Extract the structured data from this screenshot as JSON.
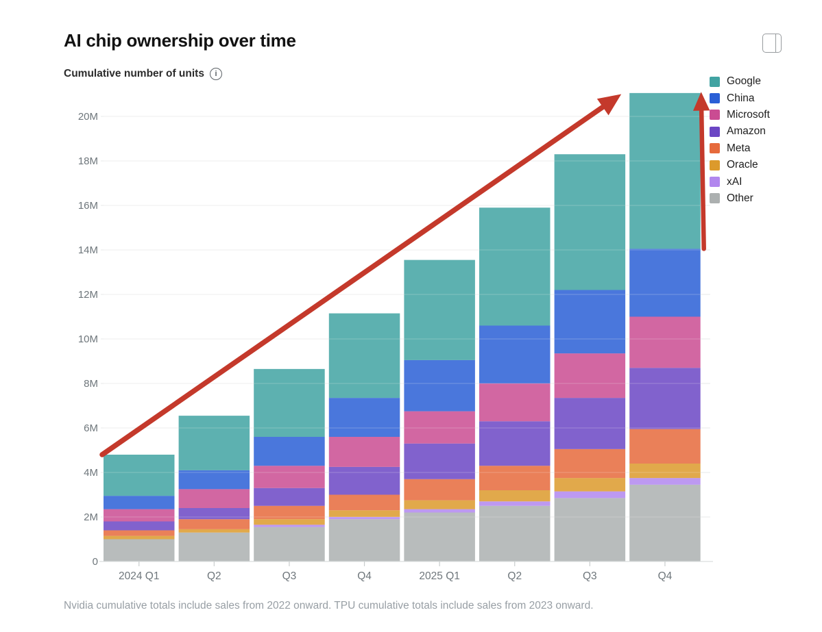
{
  "header": {
    "title": "AI chip ownership over time",
    "subtitle": "Cumulative number of units",
    "info_icon": "info-circle-icon",
    "info_glyph": "i",
    "expand_icon": "panel-toggle-icon"
  },
  "chart_data": {
    "type": "bar",
    "stacked": true,
    "title": "AI chip ownership over time",
    "ylabel": "Cumulative number of units",
    "categories": [
      "2024 Q1",
      "Q2",
      "Q3",
      "Q4",
      "2025 Q1",
      "Q2",
      "Q3",
      "Q4"
    ],
    "unit": "millions of units",
    "series": [
      {
        "name": "Google",
        "color": "#41A3A2",
        "values": [
          1.85,
          2.45,
          3.05,
          3.8,
          4.5,
          5.3,
          6.1,
          7.0
        ]
      },
      {
        "name": "China",
        "color": "#2A5FD6",
        "values": [
          0.6,
          0.85,
          1.3,
          1.75,
          2.3,
          2.6,
          2.85,
          3.05
        ]
      },
      {
        "name": "Microsoft",
        "color": "#CA4C92",
        "values": [
          0.55,
          0.85,
          1.0,
          1.35,
          1.45,
          1.7,
          2.0,
          2.3
        ]
      },
      {
        "name": "Amazon",
        "color": "#6B46C4",
        "values": [
          0.4,
          0.5,
          0.8,
          1.25,
          1.6,
          2.0,
          2.3,
          2.75
        ]
      },
      {
        "name": "Meta",
        "color": "#E66A3C",
        "values": [
          0.25,
          0.45,
          0.6,
          0.7,
          0.95,
          1.1,
          1.3,
          1.55
        ]
      },
      {
        "name": "Oracle",
        "color": "#DC9A2C",
        "values": [
          0.15,
          0.15,
          0.25,
          0.3,
          0.4,
          0.5,
          0.6,
          0.65
        ]
      },
      {
        "name": "xAI",
        "color": "#B287EE",
        "values": [
          0.0,
          0.0,
          0.1,
          0.1,
          0.15,
          0.2,
          0.3,
          0.3
        ]
      },
      {
        "name": "Other",
        "color": "#ACB0B0",
        "values": [
          1.0,
          1.3,
          1.55,
          1.9,
          2.2,
          2.5,
          2.85,
          3.45
        ]
      }
    ],
    "stack_order_bottom_to_top": [
      "Other",
      "xAI",
      "Oracle",
      "Meta",
      "Amazon",
      "Microsoft",
      "China",
      "Google"
    ],
    "totals": [
      4.8,
      6.55,
      8.65,
      11.15,
      13.55,
      15.9,
      18.3,
      21.05
    ],
    "ylim": [
      0,
      21.5
    ],
    "y_tick_labels": [
      "0",
      "2M",
      "4M",
      "6M",
      "8M",
      "10M",
      "12M",
      "14M",
      "16M",
      "18M",
      "20M"
    ],
    "y_tick_step": 2,
    "grid": "horizontal",
    "legend_position": "right",
    "annotations": {
      "arrow_color": "#C4392B",
      "trend_arrow": {
        "from_category_index": 0,
        "from_value": 4.8,
        "to_category_index": 7,
        "to_value": 21.0
      },
      "growth_arrow": {
        "category_index": 7,
        "from_value": 14.05,
        "to_value": 21.1
      }
    }
  },
  "footer": {
    "note": "Nvidia cumulative totals include sales from 2022 onward. TPU cumulative totals include sales from 2023 onward."
  }
}
